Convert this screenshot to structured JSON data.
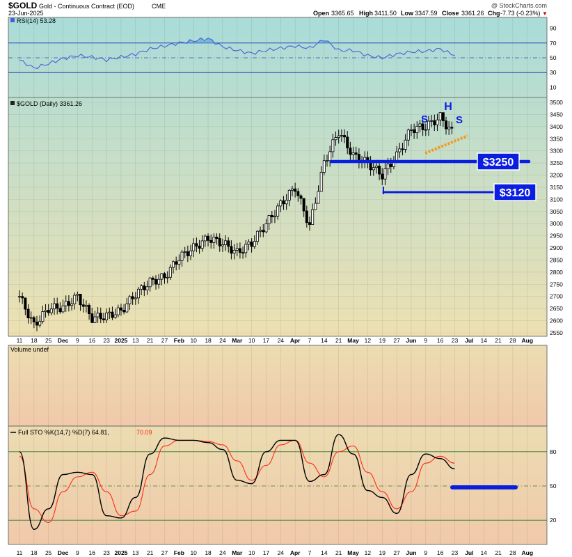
{
  "header": {
    "symbol": "$GOLD",
    "name": "Gold - Continuous Contract (EOD)",
    "exchange": "CME",
    "date": "23-Jun-2025",
    "open_label": "Open",
    "open": "3365.65",
    "high_label": "High",
    "high": "3411.50",
    "low_label": "Low",
    "low": "3347.59",
    "close_label": "Close",
    "close": "3361.26",
    "chg_label": "Chg",
    "chg": "-7.73 (-0.23%)",
    "chg_arrow": "▼",
    "watermark": "@ StockCharts.com"
  },
  "panels": {
    "rsi_label": "RSI(14) 53.28",
    "price_label": "$GOLD (Daily) 3361.26",
    "volume_label": "Volume undef",
    "sto_label_black": "Full STO %K(14,7) %D(7) 64.81,",
    "sto_label_red": "70.09"
  },
  "x_axis": {
    "labels": [
      "11",
      "18",
      "25",
      "Dec",
      "9",
      "16",
      "23",
      "2025",
      "13",
      "21",
      "27",
      "Feb",
      "10",
      "18",
      "24",
      "Mar",
      "10",
      "17",
      "24",
      "Apr",
      "7",
      "14",
      "21",
      "May",
      "12",
      "19",
      "27",
      "Jun",
      "9",
      "16",
      "23",
      "Jul",
      "14",
      "21",
      "28",
      "Aug"
    ],
    "bold": [
      "Dec",
      "2025",
      "Feb",
      "Mar",
      "Apr",
      "May",
      "Jun",
      "Jul",
      "Aug"
    ]
  },
  "annotations": {
    "level1": "$3250",
    "level2": "$3120",
    "left_shoulder": "S",
    "head": "H",
    "right_shoulder": "S"
  },
  "colors": {
    "price_bg_top": "#a9dcd9",
    "price_bg_bottom": "#ede0b2",
    "sto_bg_top": "#ecdcb2",
    "sto_bg_bottom": "#f0c9aa",
    "candle": "#000000",
    "rsi_line": "#4a5fd6",
    "rsi_fill": "#5aa9d8",
    "k_line": "#000000",
    "d_line": "#ff2a1a",
    "annotation_blue": "#0a1ee0",
    "neckline_orange": "#f39a1e",
    "label_box_bg": "#0a1ee0"
  },
  "chart_data": [
    {
      "type": "line",
      "name": "RSI",
      "title": "RSI(14) 53.28",
      "ylim": [
        0,
        100
      ],
      "y_ticks": [
        10,
        30,
        50,
        70,
        90
      ],
      "reference_lines": [
        70,
        50,
        30
      ],
      "x": [
        "11",
        "18",
        "25",
        "Dec",
        "9",
        "16",
        "23",
        "2025",
        "13",
        "21",
        "27",
        "Feb",
        "10",
        "18",
        "24",
        "Mar",
        "10",
        "17",
        "24",
        "Apr",
        "7",
        "14",
        "21",
        "May",
        "12",
        "19",
        "27",
        "Jun",
        "9",
        "16",
        "23"
      ],
      "values": [
        47,
        36,
        42,
        49,
        53,
        51,
        47,
        51,
        55,
        62,
        66,
        70,
        73,
        76,
        65,
        60,
        56,
        60,
        63,
        66,
        63,
        75,
        60,
        60,
        53,
        50,
        55,
        58,
        59,
        62,
        53
      ]
    },
    {
      "type": "candlestick",
      "name": "$GOLD (Daily)",
      "title": "$GOLD (Daily) 3361.26",
      "ylim": [
        2550,
        3500
      ],
      "y_ticks": [
        2550,
        2600,
        2650,
        2700,
        2750,
        2800,
        2850,
        2900,
        2950,
        3000,
        3050,
        3100,
        3150,
        3200,
        3250,
        3300,
        3350,
        3400,
        3450,
        3500
      ],
      "x": [
        "11",
        "18",
        "25",
        "Dec",
        "9",
        "16",
        "23",
        "2025",
        "13",
        "21",
        "27",
        "Feb",
        "10",
        "18",
        "24",
        "Mar",
        "10",
        "17",
        "24",
        "Apr",
        "7",
        "14",
        "21",
        "May",
        "12",
        "19",
        "27",
        "Jun",
        "9",
        "16",
        "23"
      ],
      "close": [
        2700,
        2580,
        2650,
        2655,
        2700,
        2610,
        2620,
        2640,
        2710,
        2760,
        2780,
        2860,
        2900,
        2940,
        2920,
        2880,
        2920,
        3000,
        3080,
        3150,
        2990,
        3250,
        3380,
        3280,
        3250,
        3200,
        3280,
        3390,
        3400,
        3440,
        3361
      ],
      "high": [
        2740,
        2620,
        2690,
        2700,
        2720,
        2660,
        2650,
        2670,
        2730,
        2780,
        2800,
        2880,
        2940,
        2960,
        2960,
        2920,
        2940,
        3020,
        3100,
        3170,
        3050,
        3360,
        3500,
        3440,
        3340,
        3260,
        3320,
        3410,
        3440,
        3460,
        3411
      ],
      "low": [
        2660,
        2540,
        2620,
        2630,
        2650,
        2590,
        2590,
        2620,
        2650,
        2720,
        2740,
        2810,
        2860,
        2900,
        2880,
        2830,
        2880,
        2960,
        3030,
        3080,
        2960,
        3200,
        3270,
        3210,
        3180,
        3120,
        3250,
        3320,
        3310,
        3380,
        3347
      ],
      "annotations": [
        {
          "text": "$3250",
          "value": 3250
        },
        {
          "text": "$3120",
          "value": 3120
        },
        {
          "text": "S",
          "role": "left shoulder"
        },
        {
          "text": "H",
          "role": "head"
        },
        {
          "text": "S",
          "role": "right shoulder"
        }
      ]
    },
    {
      "type": "line",
      "name": "Full STO %K(14,7) %D(7)",
      "title": "Full STO %K(14,7) %D(7) 64.81, 70.09",
      "ylim": [
        0,
        100
      ],
      "y_ticks": [
        20,
        50,
        80
      ],
      "reference_lines": [
        80,
        50,
        20
      ],
      "x": [
        "11",
        "18",
        "25",
        "Dec",
        "9",
        "16",
        "23",
        "2025",
        "13",
        "21",
        "27",
        "Feb",
        "10",
        "18",
        "24",
        "Mar",
        "10",
        "17",
        "24",
        "Apr",
        "7",
        "14",
        "21",
        "May",
        "12",
        "19",
        "27",
        "Jun",
        "9",
        "16",
        "23"
      ],
      "series": [
        {
          "name": "%K",
          "values": [
            80,
            12,
            30,
            60,
            62,
            60,
            24,
            22,
            40,
            78,
            92,
            90,
            90,
            88,
            82,
            55,
            52,
            80,
            90,
            90,
            54,
            60,
            95,
            78,
            46,
            40,
            26,
            60,
            78,
            74,
            65
          ]
        },
        {
          "name": "%D",
          "values": [
            76,
            30,
            18,
            45,
            58,
            62,
            45,
            24,
            28,
            60,
            85,
            90,
            90,
            89,
            86,
            72,
            55,
            68,
            86,
            90,
            70,
            58,
            80,
            85,
            62,
            45,
            30,
            45,
            70,
            76,
            70
          ]
        }
      ],
      "annotation_value": 50
    }
  ]
}
